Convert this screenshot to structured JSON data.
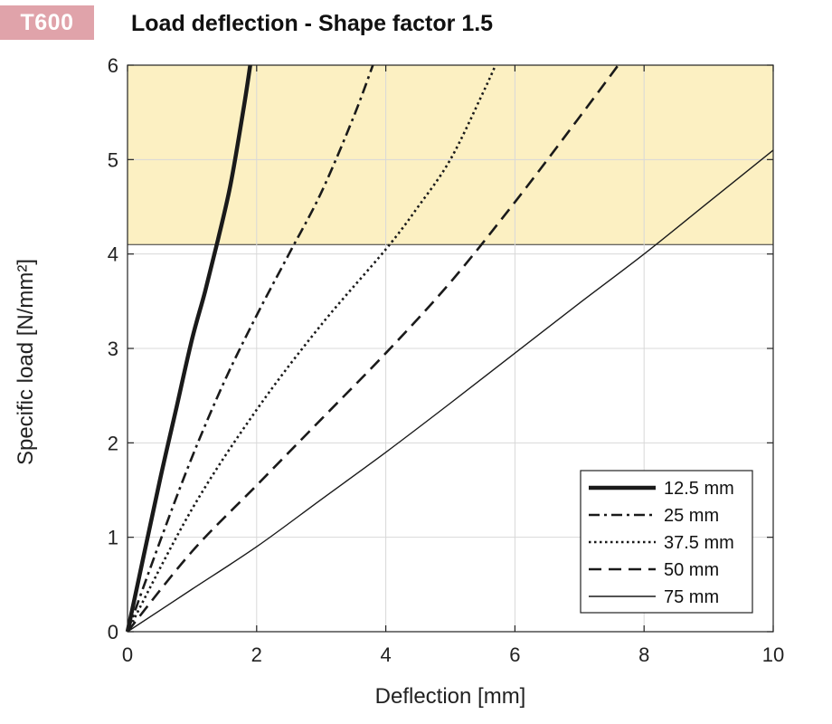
{
  "badge": {
    "text": "T600",
    "color": "#e0a3aa"
  },
  "title": "Load deflection - Shape factor 1.5",
  "chart_data": {
    "type": "line",
    "xlabel": "Deflection  [mm]",
    "ylabel": "Specific load [N/mm²]",
    "xlim": [
      0,
      10
    ],
    "ylim": [
      0,
      6
    ],
    "xticks": [
      0,
      2,
      4,
      6,
      8,
      10
    ],
    "yticks": [
      0,
      1,
      2,
      3,
      4,
      5,
      6
    ],
    "grid": true,
    "legend_position": "bottom-right",
    "highlight_band": {
      "y_from": 4.1,
      "y_to": 6,
      "color": "#fcf0c2"
    },
    "series": [
      {
        "name": "12.5 mm",
        "style": "solid-thick",
        "color": "#1a1a1a",
        "x": [
          0,
          0.25,
          0.5,
          0.75,
          1.0,
          1.2,
          1.4,
          1.6,
          1.8,
          1.9
        ],
        "y": [
          0,
          0.8,
          1.6,
          2.35,
          3.1,
          3.6,
          4.15,
          4.75,
          5.55,
          6.0
        ]
      },
      {
        "name": "25 mm",
        "style": "dash-dot",
        "color": "#1a1a1a",
        "x": [
          0,
          0.5,
          1.0,
          1.5,
          2.0,
          2.5,
          3.0,
          3.5,
          3.8
        ],
        "y": [
          0,
          0.95,
          1.85,
          2.65,
          3.35,
          4.0,
          4.65,
          5.45,
          6.0
        ]
      },
      {
        "name": "37.5 mm",
        "style": "dotted",
        "color": "#1a1a1a",
        "x": [
          0,
          1.0,
          2.0,
          3.0,
          4.0,
          4.5,
          5.0,
          5.5,
          5.7
        ],
        "y": [
          0,
          1.3,
          2.35,
          3.25,
          4.05,
          4.5,
          5.0,
          5.7,
          6.0
        ]
      },
      {
        "name": "50 mm",
        "style": "dashed",
        "color": "#1a1a1a",
        "x": [
          0,
          1.0,
          2.0,
          3.0,
          4.0,
          5.0,
          6.0,
          7.0,
          7.6
        ],
        "y": [
          0,
          0.85,
          1.55,
          2.25,
          2.95,
          3.7,
          4.55,
          5.45,
          6.0
        ]
      },
      {
        "name": "75 mm",
        "style": "solid-thin",
        "color": "#1a1a1a",
        "x": [
          0,
          1.0,
          2.0,
          3.0,
          4.0,
          5.0,
          6.0,
          7.0,
          8.0,
          9.0,
          10.0
        ],
        "y": [
          0,
          0.45,
          0.9,
          1.4,
          1.9,
          2.42,
          2.95,
          3.48,
          4.0,
          4.55,
          5.1
        ]
      }
    ]
  }
}
